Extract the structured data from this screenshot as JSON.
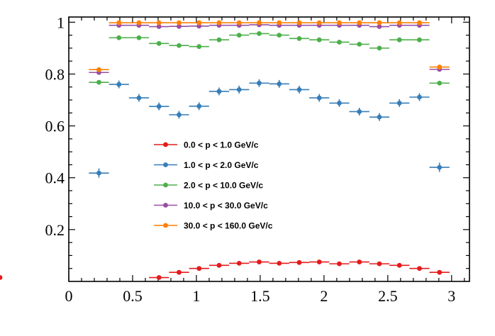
{
  "chart_data": {
    "type": "scatter",
    "title": "",
    "xlabel": "",
    "ylabel": "",
    "xlim": [
      0,
      3.14
    ],
    "ylim": [
      0,
      1.02
    ],
    "x_ticks": [
      "0",
      "0.5",
      "1",
      "1.5",
      "2",
      "2.5",
      "3"
    ],
    "y_ticks": [
      "0.2",
      "0.4",
      "0.6",
      "0.8",
      "1"
    ],
    "grid": false,
    "legend_position": "center-left",
    "x": [
      0.236,
      0.393,
      0.55,
      0.707,
      0.864,
      1.021,
      1.178,
      1.335,
      1.492,
      1.649,
      1.806,
      1.963,
      2.12,
      2.277,
      2.434,
      2.591,
      2.748,
      2.905
    ],
    "x_halfwidth": 0.0785,
    "series": [
      {
        "name": "0.0 < p < 1.0 GeV/c",
        "color": "#e41a1c",
        "x_first": 3,
        "values": [
          0.015,
          0.035,
          0.05,
          0.062,
          0.07,
          0.075,
          0.07,
          0.073,
          0.075,
          0.068,
          0.075,
          0.068,
          0.062,
          0.05,
          0.035,
          0.015
        ],
        "yerr": [
          0.006,
          0.006,
          0.006,
          0.006,
          0.006,
          0.006,
          0.006,
          0.006,
          0.006,
          0.006,
          0.006,
          0.006,
          0.006,
          0.006,
          0.006,
          0.006
        ]
      },
      {
        "name": "1.0 < p < 2.0 GeV/c",
        "color": "#377eb8",
        "x_first": 0,
        "values": [
          0.418,
          0.76,
          0.708,
          0.675,
          0.643,
          0.676,
          0.733,
          0.74,
          0.765,
          0.762,
          0.74,
          0.708,
          0.688,
          0.655,
          0.634,
          0.688,
          0.711,
          0.44
        ],
        "yerr": [
          0.018,
          0.015,
          0.015,
          0.015,
          0.015,
          0.015,
          0.015,
          0.015,
          0.015,
          0.015,
          0.015,
          0.015,
          0.015,
          0.015,
          0.015,
          0.015,
          0.015,
          0.018
        ]
      },
      {
        "name": "2.0 < p < 10.0 GeV/c",
        "color": "#4daf4a",
        "x_first": 0,
        "values": [
          0.768,
          0.94,
          0.94,
          0.918,
          0.91,
          0.906,
          0.932,
          0.95,
          0.956,
          0.95,
          0.937,
          0.932,
          0.923,
          0.915,
          0.9,
          0.932,
          0.932,
          0.765
        ],
        "yerr": [
          0.006,
          0.006,
          0.006,
          0.006,
          0.006,
          0.006,
          0.006,
          0.006,
          0.006,
          0.006,
          0.006,
          0.006,
          0.006,
          0.006,
          0.006,
          0.006,
          0.006,
          0.006
        ]
      },
      {
        "name": "10.0 < p < 30.0 GeV/c",
        "color": "#984ea3",
        "x_first": 0,
        "values": [
          0.806,
          0.988,
          0.988,
          0.983,
          0.984,
          0.985,
          0.988,
          0.988,
          0.99,
          0.988,
          0.988,
          0.988,
          0.988,
          0.988,
          0.983,
          0.988,
          0.988,
          0.818
        ],
        "yerr": [
          0.004,
          0.004,
          0.004,
          0.004,
          0.004,
          0.004,
          0.004,
          0.004,
          0.004,
          0.004,
          0.004,
          0.004,
          0.004,
          0.004,
          0.004,
          0.004,
          0.004,
          0.004
        ]
      },
      {
        "name": "30.0 < p < 160.0 GeV/c",
        "color": "#ff7f00",
        "x_first": 0,
        "values": [
          0.817,
          0.998,
          0.998,
          0.998,
          0.998,
          0.998,
          0.998,
          0.998,
          0.998,
          0.998,
          0.998,
          0.998,
          0.998,
          0.998,
          0.998,
          0.998,
          0.998,
          0.827
        ],
        "yerr": [
          0.004,
          0.004,
          0.004,
          0.004,
          0.004,
          0.004,
          0.004,
          0.004,
          0.004,
          0.004,
          0.004,
          0.004,
          0.004,
          0.004,
          0.004,
          0.004,
          0.004,
          0.004
        ]
      }
    ]
  }
}
